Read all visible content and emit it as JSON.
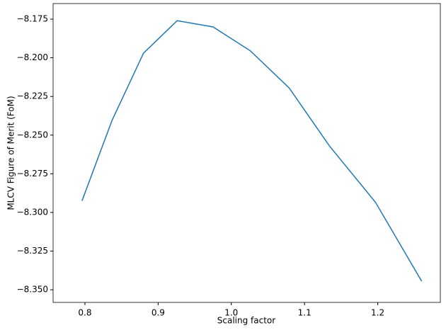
{
  "chart_data": {
    "type": "line",
    "x_label": "Scaling factor",
    "y_label": "MLCV Figure of Merit (FoM)",
    "x": [
      0.796,
      0.837,
      0.88,
      0.926,
      0.975,
      1.026,
      1.079,
      1.134,
      1.197,
      1.26
    ],
    "series": [
      {
        "color": "#1f77b4",
        "values": [
          -8.2925,
          -8.2405,
          -8.197,
          -8.176,
          -8.18,
          -8.1955,
          -8.2195,
          -8.257,
          -8.2935,
          -8.3445
        ]
      }
    ],
    "xlim": [
      0.7565,
      1.2855
    ],
    "ylim": [
      -8.3582,
      -8.1649
    ],
    "xticks": [
      0.8,
      0.9,
      {
        "value": 1,
        "label": "1.0"
      },
      1.1,
      1.2
    ],
    "yticks": [
      {
        "value": -8.35,
        "label": "−8.350"
      },
      {
        "value": -8.325,
        "label": "−8.325"
      },
      {
        "value": -8.3,
        "label": "−8.300"
      },
      {
        "value": -8.275,
        "label": "−8.275"
      },
      {
        "value": -8.25,
        "label": "−8.250"
      },
      {
        "value": -8.225,
        "label": "−8.225"
      },
      {
        "value": -8.2,
        "label": "−8.200"
      },
      {
        "value": -8.175,
        "label": "−8.175"
      }
    ]
  }
}
